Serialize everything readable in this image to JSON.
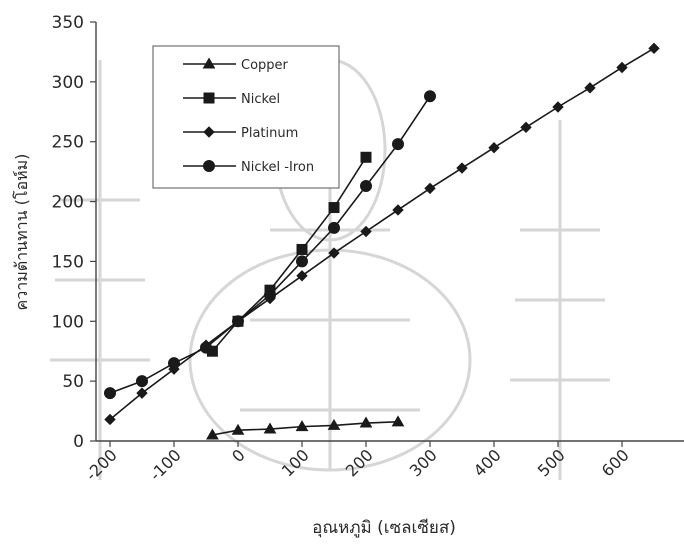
{
  "chart_data": {
    "type": "line",
    "xlabel": "อุณหภูมิ (เซลเซียส)",
    "ylabel": "ความต้านทาน (โอห์ม)",
    "x_ticks": [
      "-200",
      "-100",
      "0",
      "100",
      "200",
      "300",
      "400",
      "500",
      "600"
    ],
    "y_ticks": [
      "0",
      "50",
      "100",
      "150",
      "200",
      "250",
      "300",
      "350"
    ],
    "xlim": [
      -200,
      650
    ],
    "ylim": [
      0,
      350
    ],
    "grid": false,
    "legend_position": "top-left",
    "series": [
      {
        "name": "Copper",
        "marker": "triangle",
        "color": "#1a1a1a",
        "x": [
          -40,
          0,
          50,
          100,
          150,
          200,
          250
        ],
        "y": [
          5,
          9,
          10,
          12,
          13,
          15,
          16
        ]
      },
      {
        "name": "Nickel",
        "marker": "square",
        "color": "#1a1a1a",
        "x": [
          -40,
          0,
          50,
          100,
          150,
          200
        ],
        "y": [
          75,
          100,
          126,
          160,
          195,
          237
        ]
      },
      {
        "name": "Platinum",
        "marker": "diamond",
        "color": "#1a1a1a",
        "x": [
          -200,
          -150,
          -100,
          -50,
          0,
          50,
          100,
          150,
          200,
          250,
          300,
          350,
          400,
          450,
          500,
          550,
          600,
          650
        ],
        "y": [
          18,
          40,
          60,
          80,
          100,
          119,
          138,
          157,
          175,
          193,
          211,
          228,
          245,
          262,
          279,
          295,
          312,
          328
        ]
      },
      {
        "name": "Nickel -Iron",
        "marker": "circle",
        "color": "#1a1a1a",
        "x": [
          -200,
          -150,
          -100,
          -50,
          0,
          50,
          100,
          150,
          200,
          250,
          300
        ],
        "y": [
          40,
          50,
          65,
          78,
          100,
          122,
          150,
          178,
          213,
          248,
          288
        ]
      }
    ]
  }
}
